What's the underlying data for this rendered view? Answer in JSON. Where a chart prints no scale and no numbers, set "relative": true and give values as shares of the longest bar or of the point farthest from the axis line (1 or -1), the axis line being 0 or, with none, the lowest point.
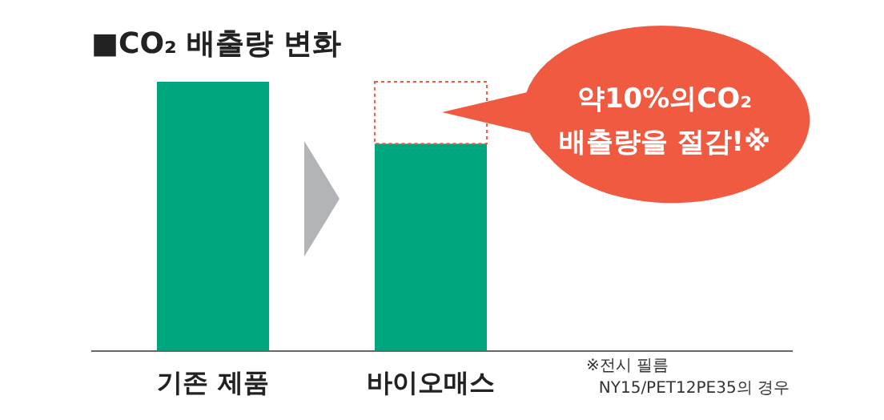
{
  "chart_data": {
    "type": "bar",
    "title": "■CO₂ 배출량 변화",
    "categories": [
      "기존 제품",
      "바이오매스"
    ],
    "values": [
      1,
      0.77
    ],
    "color": "#00a67e",
    "relative": true,
    "annotations": [
      "약10%의CO₂\n배출량을 절감!※",
      "※전시 필름\nNY15/PET12PE35의 경우"
    ]
  }
}
